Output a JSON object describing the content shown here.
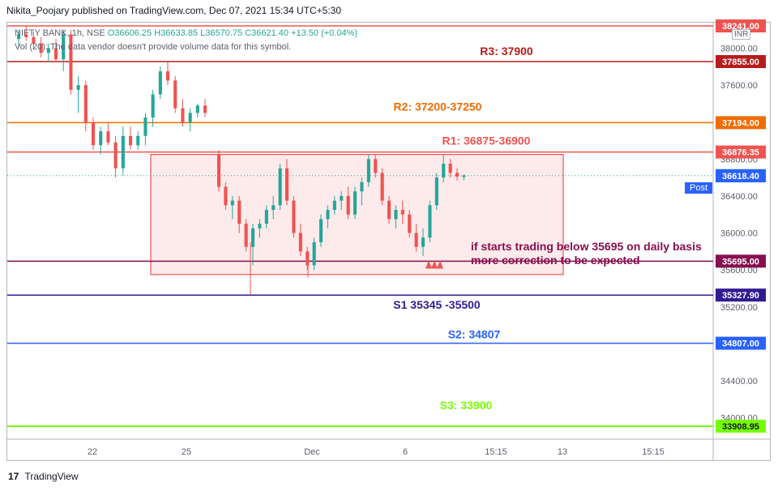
{
  "header": {
    "published": "Nikita_Poojary published on TradingView.com, Dec 07, 2021 15:34 UTC+5:30"
  },
  "legend": {
    "symbol": "NIFTY BANK, 1h, NSE",
    "open": "O36606.25",
    "high": "H36633.85",
    "low": "L36570.75",
    "close": "C36621.40",
    "change": "+13.50 (+0.04%)",
    "volume_note": "Vol (20):  The data vendor doesn't provide volume data for this symbol."
  },
  "currency": "INR",
  "post_label": "Post",
  "footer": {
    "brand": "TradingView",
    "logo": "17"
  },
  "colors": {
    "up": "#26a69a",
    "down": "#ef5350",
    "r3": "#b71c1c",
    "r2": "#ef6c00",
    "r1": "#ef5350",
    "s1": "#311b92",
    "s2": "#2962ff",
    "s3": "#76ff03",
    "trigger": "#880e4f"
  },
  "chart_data": {
    "type": "candlestick",
    "title": "",
    "xlabel": "",
    "ylabel": "",
    "ylim": [
      33850,
      38260
    ],
    "y_ticks": [
      34000,
      34400,
      34800,
      35200,
      35600,
      36000,
      36400,
      36800,
      37200,
      37600,
      38000
    ],
    "y_tick_labels": [
      "34000.00",
      "34400.00",
      "34800.00",
      "35200.00",
      "35600.00",
      "36000.00",
      "36400.00",
      "36800.00",
      "37200.00",
      "37600.00",
      "38000.00"
    ],
    "x_ticks": [
      "22",
      "25",
      "Dec",
      "6",
      "15:15",
      "13",
      "15:15"
    ],
    "levels": [
      {
        "label": "R3: 37900",
        "value": 37855.0,
        "tag": "37855.00",
        "color_key": "r3"
      },
      {
        "label": "R2: 37200-37250",
        "value": 37194.0,
        "tag": "37194.00",
        "color_key": "r2"
      },
      {
        "label": "R1: 36875-36900",
        "value": 36876.35,
        "tag": "36876.35",
        "color_key": "r1"
      },
      {
        "label": "",
        "value": 35695.0,
        "tag": "35695.00",
        "color_key": "trigger"
      },
      {
        "label": "S1 35345 -35500",
        "value": 35327.9,
        "tag": "35327.90",
        "color_key": "s1"
      },
      {
        "label": "S2: 34807",
        "value": 34807.0,
        "tag": "34807.00",
        "color_key": "s2"
      },
      {
        "label": "S3: 33900",
        "value": 33908.95,
        "tag": "33908.95",
        "color_key": "s3"
      }
    ],
    "top_tag": "38241.00",
    "last_price": {
      "value": 36621.4,
      "tag": "36621.40"
    },
    "post_price": {
      "value": 36618.4,
      "tag": "36618.40"
    },
    "box": {
      "top": 36850,
      "bottom": 35550
    },
    "annotation": [
      "if starts trading below 35695 on daily basis",
      "more correction to be expected"
    ],
    "candles": [
      [
        38100,
        38200,
        38020,
        38150
      ],
      [
        38150,
        38240,
        38080,
        38120
      ],
      [
        38120,
        38180,
        38000,
        38050
      ],
      [
        38050,
        38120,
        37900,
        37950
      ],
      [
        37950,
        38050,
        37850,
        38000
      ],
      [
        38000,
        38100,
        37850,
        37880
      ],
      [
        37880,
        38200,
        37750,
        38150
      ],
      [
        38150,
        38200,
        37500,
        37550
      ],
      [
        37550,
        37700,
        37300,
        37600
      ],
      [
        37600,
        37650,
        37100,
        37200
      ],
      [
        37200,
        37250,
        36900,
        36950
      ],
      [
        36950,
        37150,
        36850,
        37100
      ],
      [
        37100,
        37200,
        36950,
        36980
      ],
      [
        36980,
        37050,
        36600,
        36700
      ],
      [
        36700,
        37150,
        36620,
        37050
      ],
      [
        37050,
        37150,
        36900,
        36950
      ],
      [
        36950,
        37100,
        36900,
        37050
      ],
      [
        37050,
        37300,
        36950,
        37250
      ],
      [
        37250,
        37550,
        37150,
        37500
      ],
      [
        37500,
        37800,
        37450,
        37750
      ],
      [
        37750,
        37850,
        37600,
        37650
      ],
      [
        37650,
        37700,
        37300,
        37350
      ],
      [
        37350,
        37450,
        37150,
        37200
      ],
      [
        37200,
        37350,
        37100,
        37300
      ],
      [
        37300,
        37400,
        37250,
        37380
      ],
      [
        37380,
        37450,
        37250,
        37300
      ],
      [
        36850,
        36900,
        36450,
        36500
      ],
      [
        36500,
        36550,
        36250,
        36300
      ],
      [
        36300,
        36400,
        36150,
        36350
      ],
      [
        36350,
        36400,
        36000,
        36100
      ],
      [
        36100,
        36150,
        35800,
        35850
      ],
      [
        35850,
        36100,
        35650,
        36050
      ],
      [
        36050,
        36150,
        35950,
        36100
      ],
      [
        36100,
        36300,
        36050,
        36250
      ],
      [
        36250,
        36400,
        36150,
        36300
      ],
      [
        36300,
        36750,
        36250,
        36700
      ],
      [
        36700,
        36800,
        36300,
        36350
      ],
      [
        36350,
        36400,
        35950,
        36000
      ],
      [
        36000,
        36100,
        35750,
        35800
      ],
      [
        35800,
        35850,
        35600,
        35650
      ],
      [
        35650,
        35950,
        35600,
        35900
      ],
      [
        35900,
        36200,
        35850,
        36150
      ],
      [
        36150,
        36300,
        36050,
        36250
      ],
      [
        36250,
        36400,
        36200,
        36350
      ],
      [
        36350,
        36450,
        36250,
        36400
      ],
      [
        36400,
        36500,
        36150,
        36200
      ],
      [
        36200,
        36500,
        36150,
        36450
      ],
      [
        36450,
        36600,
        36300,
        36550
      ],
      [
        36550,
        36850,
        36500,
        36800
      ],
      [
        36800,
        36850,
        36600,
        36650
      ],
      [
        36650,
        36700,
        36300,
        36350
      ],
      [
        36350,
        36400,
        36100,
        36150
      ],
      [
        36150,
        36300,
        36050,
        36250
      ],
      [
        36250,
        36350,
        36100,
        36200
      ],
      [
        36200,
        36250,
        35950,
        36000
      ],
      [
        36000,
        36100,
        35800,
        35850
      ],
      [
        35850,
        36050,
        35750,
        35950
      ],
      [
        35950,
        36350,
        35900,
        36300
      ],
      [
        36300,
        36650,
        36250,
        36600
      ],
      [
        36600,
        36850,
        36550,
        36750
      ],
      [
        36750,
        36800,
        36600,
        36650
      ],
      [
        36650,
        36700,
        36570,
        36610
      ],
      [
        36606.25,
        36633.85,
        36570.75,
        36621.4
      ]
    ]
  }
}
